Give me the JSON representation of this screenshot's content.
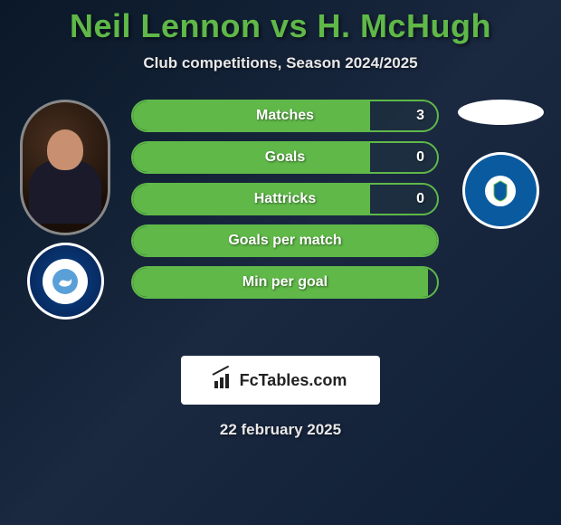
{
  "header": {
    "player1": "Neil Lennon",
    "vs": "vs",
    "player2": "H. McHugh",
    "subtitle": "Club competitions, Season 2024/2025"
  },
  "style": {
    "accent": "#5fb848",
    "background_gradient": [
      "#0a1828",
      "#1a2840",
      "#0f1f35"
    ],
    "pill_height": 36,
    "title_fontsize": 36,
    "subtitle_fontsize": 17
  },
  "left": {
    "photo_alt": "Neil Lennon photo",
    "club_name": "Wycombe Wanderers",
    "club_badge_bg": "#0a3a7a"
  },
  "right": {
    "placeholder_alt": "H. McHugh placeholder",
    "club_name": "Wigan Athletic",
    "club_badge_bg": "#0a5aa0"
  },
  "stats": [
    {
      "label": "Matches",
      "value": "3",
      "fill_pct": 78
    },
    {
      "label": "Goals",
      "value": "0",
      "fill_pct": 78
    },
    {
      "label": "Hattricks",
      "value": "0",
      "fill_pct": 78
    },
    {
      "label": "Goals per match",
      "value": "",
      "fill_pct": 100
    },
    {
      "label": "Min per goal",
      "value": "",
      "fill_pct": 97
    }
  ],
  "brand": {
    "text": "FcTables.com"
  },
  "date": "22 february 2025"
}
